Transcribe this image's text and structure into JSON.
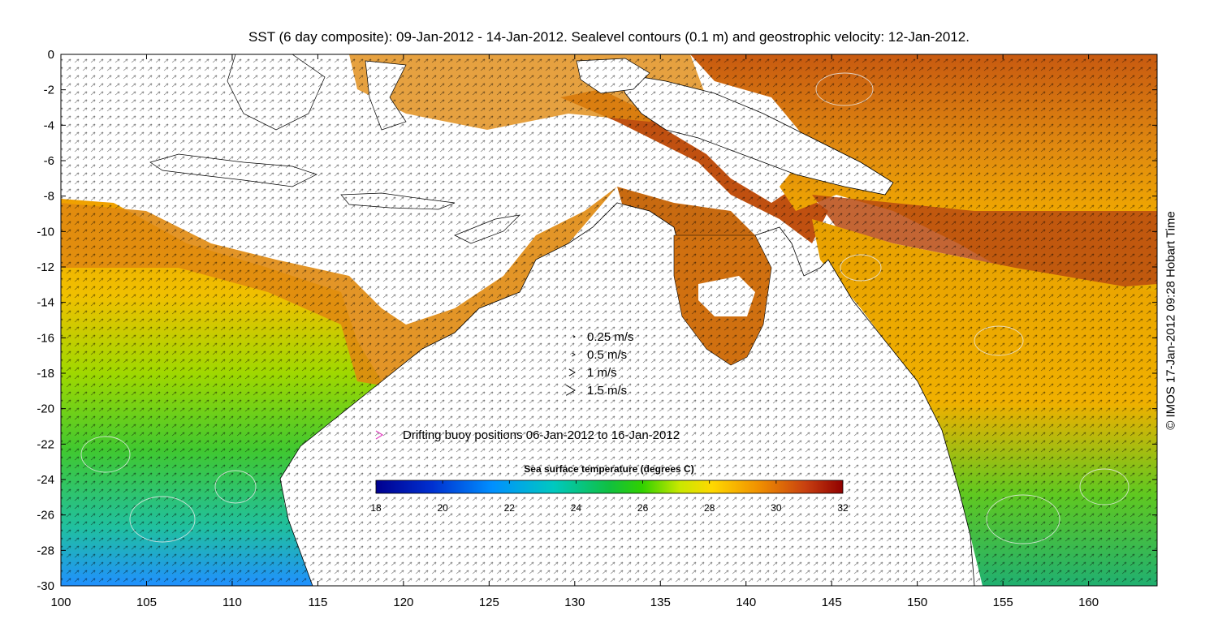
{
  "title": "SST (6 day composite): 09-Jan-2012 - 14-Jan-2012. Sealevel contours (0.1 m) and geostrophic velocity: 12-Jan-2012.",
  "credit": "© IMOS 17-Jan-2012 09:28 Hobart Time",
  "axes": {
    "x_ticks": [
      "100",
      "105",
      "110",
      "115",
      "120",
      "125",
      "130",
      "135",
      "140",
      "145",
      "150",
      "155",
      "160"
    ],
    "y_ticks": [
      "0",
      "-2",
      "-4",
      "-6",
      "-8",
      "-10",
      "-12",
      "-14",
      "-16",
      "-18",
      "-20",
      "-22",
      "-24",
      "-26",
      "-28",
      "-30"
    ],
    "lon_range": [
      100,
      164
    ],
    "lat_range": [
      -30,
      0
    ]
  },
  "velocity_legend": [
    {
      "label": "0.25 m/s",
      "speed": 0.25
    },
    {
      "label": "0.5 m/s",
      "speed": 0.5
    },
    {
      "label": "1 m/s",
      "speed": 1
    },
    {
      "label": "1.5 m/s",
      "speed": 1.5
    }
  ],
  "buoy_legend": {
    "label": "Drifting buoy positions 06-Jan-2012 to 16-Jan-2012",
    "color": "#e040c0"
  },
  "colorbar": {
    "title": "Sea surface temperature (degrees C)",
    "ticks": [
      "18",
      "20",
      "22",
      "24",
      "26",
      "28",
      "30",
      "32"
    ],
    "range": [
      18,
      32
    ],
    "colors": [
      "#00008f",
      "#0050ff",
      "#00c8ff",
      "#00c890",
      "#10d000",
      "#a0e800",
      "#ffe000",
      "#ffa000",
      "#e06000",
      "#a00000"
    ]
  },
  "colors": {
    "land": "#ffffff",
    "coast": "#000000",
    "contours": "#e8e8e8"
  }
}
